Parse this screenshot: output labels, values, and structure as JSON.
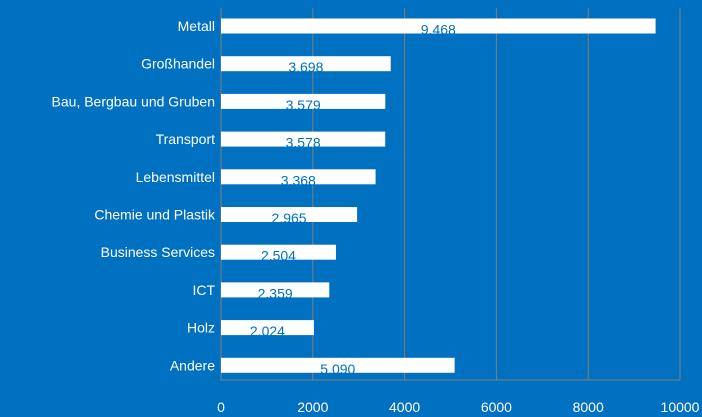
{
  "chart_data": {
    "type": "bar",
    "orientation": "horizontal",
    "categories": [
      "Metall",
      "Großhandel",
      "Bau, Bergbau und Gruben",
      "Transport",
      "Lebensmittel",
      "Chemie und Plastik",
      "Business Services",
      "ICT",
      "Holz",
      "Andere"
    ],
    "values": [
      9468,
      3698,
      3579,
      3578,
      3368,
      2965,
      2504,
      2359,
      2024,
      5090
    ],
    "data_labels": [
      "9.468",
      "3.698",
      "3.579",
      "3.578",
      "3.368",
      "2.965",
      "2.504",
      "2.359",
      "2.024",
      "5.090"
    ],
    "x_ticks": [
      0,
      2000,
      4000,
      6000,
      8000,
      10000
    ],
    "x_tick_labels": [
      "0",
      "2000",
      "4000",
      "6000",
      "8000",
      "10000"
    ],
    "xlim": [
      0,
      10000
    ],
    "grid": true,
    "legend": "none",
    "colors": {
      "background": "#0070c0",
      "bar": "#ffffff",
      "bar_label": "#0070c0",
      "text": "#ffffff",
      "grid": "#7f7f7f"
    }
  }
}
